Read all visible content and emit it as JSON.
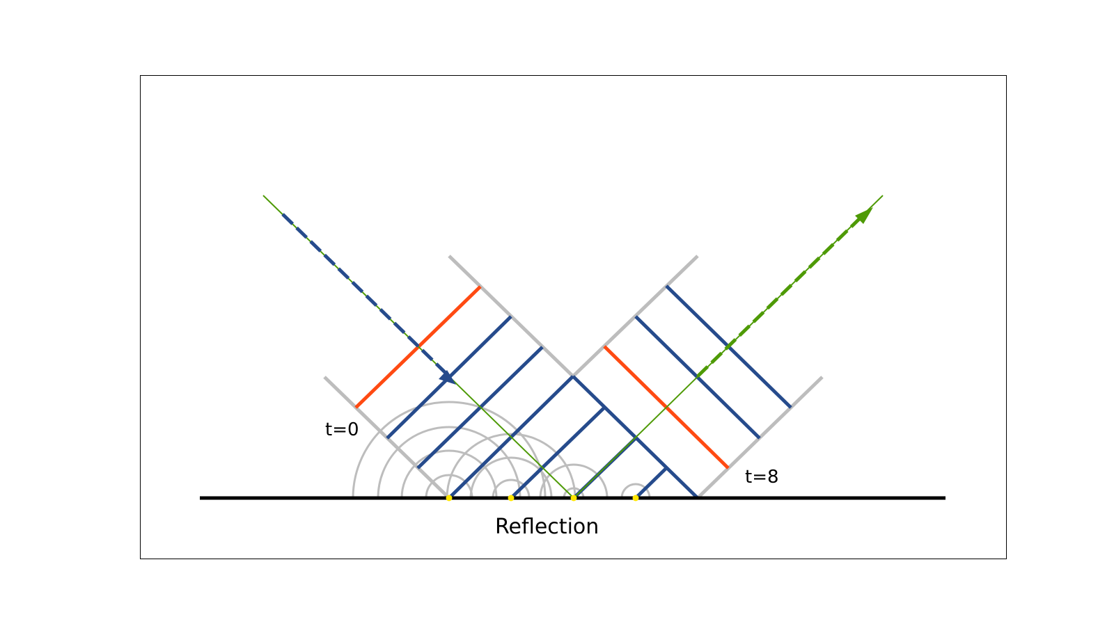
{
  "diagram": {
    "title": "Reflection",
    "labels": {
      "start": "t=0",
      "end": "t=8"
    },
    "colors": {
      "frame": "#000000",
      "surface": "#000000",
      "wavefront_guide": "#bdbdbd",
      "wavefront": "#264b8c",
      "wavefront_highlight": "#ff4a12",
      "ray": "#4e9a06",
      "source_point": "#ffe600",
      "wavelet": "#bdbdbd"
    }
  }
}
